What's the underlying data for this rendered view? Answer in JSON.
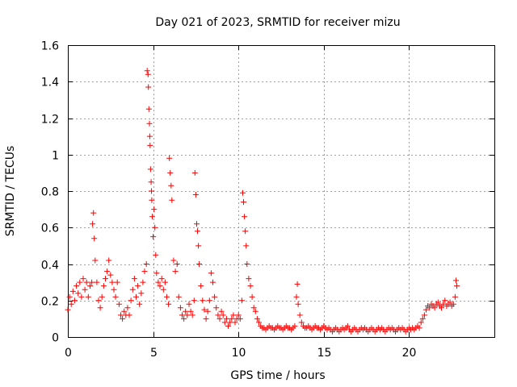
{
  "chart_data": {
    "type": "scatter",
    "title": "Day 021 of 2023, SRMTID for receiver mizu",
    "xlabel": "GPS time / hours",
    "ylabel": "SRMTID / TECUs",
    "xlim": [
      0,
      25
    ],
    "ylim": [
      0,
      1.6
    ],
    "xticks": [
      0,
      5,
      10,
      15,
      20
    ],
    "xtick_labels": [
      "0",
      "5",
      "10",
      "15",
      "20"
    ],
    "yticks": [
      0,
      0.2,
      0.4,
      0.6,
      0.8,
      1.0,
      1.2,
      1.4,
      1.6
    ],
    "ytick_labels": [
      "0",
      "0.2",
      "0.4",
      "0.6",
      "0.8",
      "1",
      "1.2",
      "1.4",
      "1.6"
    ],
    "grid": true,
    "marker": "+",
    "marker_color": "#ff0000",
    "series": [
      {
        "name": "SRMTID",
        "points": [
          [
            0.0,
            0.15
          ],
          [
            0.1,
            0.22
          ],
          [
            0.2,
            0.18
          ],
          [
            0.3,
            0.25
          ],
          [
            0.4,
            0.2
          ],
          [
            0.5,
            0.28
          ],
          [
            0.6,
            0.24
          ],
          [
            0.7,
            0.3
          ],
          [
            0.8,
            0.22
          ],
          [
            0.9,
            0.32
          ],
          [
            1.0,
            0.26
          ],
          [
            1.1,
            0.3
          ],
          [
            1.2,
            0.22
          ],
          [
            1.3,
            0.28
          ],
          [
            1.4,
            0.3
          ],
          [
            1.45,
            0.62
          ],
          [
            1.5,
            0.68
          ],
          [
            1.55,
            0.54
          ],
          [
            1.6,
            0.42
          ],
          [
            1.7,
            0.3
          ],
          [
            1.8,
            0.2
          ],
          [
            1.9,
            0.16
          ],
          [
            2.0,
            0.22
          ],
          [
            2.1,
            0.28
          ],
          [
            2.2,
            0.32
          ],
          [
            2.3,
            0.36
          ],
          [
            2.4,
            0.42
          ],
          [
            2.5,
            0.34
          ],
          [
            2.6,
            0.3
          ],
          [
            2.7,
            0.26
          ],
          [
            2.8,
            0.22
          ],
          [
            2.9,
            0.3
          ],
          [
            3.0,
            0.18
          ],
          [
            3.1,
            0.12
          ],
          [
            3.2,
            0.1
          ],
          [
            3.3,
            0.14
          ],
          [
            3.4,
            0.12
          ],
          [
            3.5,
            0.16
          ],
          [
            3.6,
            0.12
          ],
          [
            3.7,
            0.2
          ],
          [
            3.8,
            0.26
          ],
          [
            3.9,
            0.32
          ],
          [
            4.0,
            0.22
          ],
          [
            4.1,
            0.28
          ],
          [
            4.2,
            0.18
          ],
          [
            4.3,
            0.24
          ],
          [
            4.4,
            0.3
          ],
          [
            4.5,
            0.36
          ],
          [
            4.6,
            0.4
          ],
          [
            4.65,
            1.46
          ],
          [
            4.7,
            1.44
          ],
          [
            4.72,
            1.37
          ],
          [
            4.75,
            1.25
          ],
          [
            4.78,
            1.17
          ],
          [
            4.8,
            1.1
          ],
          [
            4.82,
            1.05
          ],
          [
            4.85,
            0.92
          ],
          [
            4.88,
            0.85
          ],
          [
            4.9,
            0.8
          ],
          [
            4.92,
            0.75
          ],
          [
            4.95,
            0.66
          ],
          [
            5.0,
            0.55
          ],
          [
            5.05,
            0.7
          ],
          [
            5.1,
            0.6
          ],
          [
            5.15,
            0.45
          ],
          [
            5.2,
            0.35
          ],
          [
            5.3,
            0.3
          ],
          [
            5.4,
            0.28
          ],
          [
            5.5,
            0.32
          ],
          [
            5.6,
            0.26
          ],
          [
            5.7,
            0.3
          ],
          [
            5.8,
            0.22
          ],
          [
            5.9,
            0.18
          ],
          [
            5.95,
            0.98
          ],
          [
            6.0,
            0.9
          ],
          [
            6.05,
            0.83
          ],
          [
            6.1,
            0.75
          ],
          [
            6.2,
            0.42
          ],
          [
            6.3,
            0.36
          ],
          [
            6.4,
            0.4
          ],
          [
            6.5,
            0.22
          ],
          [
            6.6,
            0.16
          ],
          [
            6.7,
            0.12
          ],
          [
            6.8,
            0.1
          ],
          [
            6.9,
            0.14
          ],
          [
            7.0,
            0.12
          ],
          [
            7.1,
            0.18
          ],
          [
            7.2,
            0.14
          ],
          [
            7.3,
            0.12
          ],
          [
            7.4,
            0.2
          ],
          [
            7.45,
            0.9
          ],
          [
            7.5,
            0.78
          ],
          [
            7.55,
            0.62
          ],
          [
            7.6,
            0.58
          ],
          [
            7.65,
            0.5
          ],
          [
            7.7,
            0.4
          ],
          [
            7.8,
            0.28
          ],
          [
            7.9,
            0.2
          ],
          [
            8.0,
            0.15
          ],
          [
            8.1,
            0.1
          ],
          [
            8.2,
            0.14
          ],
          [
            8.3,
            0.2
          ],
          [
            8.4,
            0.35
          ],
          [
            8.5,
            0.3
          ],
          [
            8.6,
            0.22
          ],
          [
            8.7,
            0.16
          ],
          [
            8.8,
            0.12
          ],
          [
            8.9,
            0.1
          ],
          [
            9.0,
            0.14
          ],
          [
            9.1,
            0.12
          ],
          [
            9.2,
            0.08
          ],
          [
            9.3,
            0.1
          ],
          [
            9.4,
            0.06
          ],
          [
            9.5,
            0.08
          ],
          [
            9.6,
            0.1
          ],
          [
            9.7,
            0.12
          ],
          [
            9.8,
            0.08
          ],
          [
            9.9,
            0.1
          ],
          [
            10.0,
            0.12
          ],
          [
            10.1,
            0.1
          ],
          [
            10.2,
            0.2
          ],
          [
            10.25,
            0.79
          ],
          [
            10.3,
            0.74
          ],
          [
            10.35,
            0.66
          ],
          [
            10.4,
            0.58
          ],
          [
            10.45,
            0.5
          ],
          [
            10.5,
            0.4
          ],
          [
            10.6,
            0.32
          ],
          [
            10.7,
            0.28
          ],
          [
            10.8,
            0.22
          ],
          [
            10.9,
            0.16
          ],
          [
            11.0,
            0.14
          ],
          [
            11.1,
            0.1
          ],
          [
            11.2,
            0.08
          ],
          [
            11.3,
            0.06
          ],
          [
            11.4,
            0.05
          ],
          [
            11.5,
            0.05
          ],
          [
            11.6,
            0.04
          ],
          [
            11.7,
            0.05
          ],
          [
            11.8,
            0.06
          ],
          [
            11.9,
            0.05
          ],
          [
            12.0,
            0.05
          ],
          [
            12.1,
            0.04
          ],
          [
            12.2,
            0.05
          ],
          [
            12.3,
            0.06
          ],
          [
            12.4,
            0.05
          ],
          [
            12.5,
            0.05
          ],
          [
            12.6,
            0.04
          ],
          [
            12.7,
            0.05
          ],
          [
            12.8,
            0.06
          ],
          [
            12.9,
            0.05
          ],
          [
            13.0,
            0.05
          ],
          [
            13.1,
            0.04
          ],
          [
            13.2,
            0.05
          ],
          [
            13.3,
            0.06
          ],
          [
            13.4,
            0.22
          ],
          [
            13.45,
            0.29
          ],
          [
            13.5,
            0.18
          ],
          [
            13.6,
            0.12
          ],
          [
            13.7,
            0.08
          ],
          [
            13.8,
            0.06
          ],
          [
            13.9,
            0.05
          ],
          [
            14.0,
            0.05
          ],
          [
            14.1,
            0.06
          ],
          [
            14.2,
            0.05
          ],
          [
            14.3,
            0.04
          ],
          [
            14.4,
            0.05
          ],
          [
            14.5,
            0.06
          ],
          [
            14.6,
            0.05
          ],
          [
            14.7,
            0.05
          ],
          [
            14.8,
            0.04
          ],
          [
            14.9,
            0.05
          ],
          [
            15.0,
            0.06
          ],
          [
            15.1,
            0.05
          ],
          [
            15.2,
            0.04
          ],
          [
            15.3,
            0.05
          ],
          [
            15.4,
            0.04
          ],
          [
            15.5,
            0.03
          ],
          [
            15.6,
            0.04
          ],
          [
            15.7,
            0.05
          ],
          [
            15.8,
            0.04
          ],
          [
            15.9,
            0.03
          ],
          [
            16.0,
            0.04
          ],
          [
            16.1,
            0.05
          ],
          [
            16.2,
            0.04
          ],
          [
            16.3,
            0.05
          ],
          [
            16.4,
            0.06
          ],
          [
            16.5,
            0.04
          ],
          [
            16.6,
            0.03
          ],
          [
            16.7,
            0.04
          ],
          [
            16.8,
            0.05
          ],
          [
            16.9,
            0.04
          ],
          [
            17.0,
            0.03
          ],
          [
            17.1,
            0.04
          ],
          [
            17.2,
            0.05
          ],
          [
            17.3,
            0.04
          ],
          [
            17.4,
            0.05
          ],
          [
            17.5,
            0.04
          ],
          [
            17.6,
            0.03
          ],
          [
            17.7,
            0.04
          ],
          [
            17.8,
            0.05
          ],
          [
            17.9,
            0.04
          ],
          [
            18.0,
            0.03
          ],
          [
            18.1,
            0.04
          ],
          [
            18.2,
            0.05
          ],
          [
            18.3,
            0.04
          ],
          [
            18.4,
            0.05
          ],
          [
            18.5,
            0.04
          ],
          [
            18.6,
            0.03
          ],
          [
            18.7,
            0.04
          ],
          [
            18.8,
            0.05
          ],
          [
            18.9,
            0.04
          ],
          [
            19.0,
            0.05
          ],
          [
            19.1,
            0.04
          ],
          [
            19.2,
            0.03
          ],
          [
            19.3,
            0.04
          ],
          [
            19.4,
            0.05
          ],
          [
            19.5,
            0.04
          ],
          [
            19.6,
            0.05
          ],
          [
            19.7,
            0.04
          ],
          [
            19.8,
            0.03
          ],
          [
            19.9,
            0.04
          ],
          [
            20.0,
            0.05
          ],
          [
            20.1,
            0.04
          ],
          [
            20.2,
            0.05
          ],
          [
            20.3,
            0.04
          ],
          [
            20.4,
            0.05
          ],
          [
            20.5,
            0.06
          ],
          [
            20.6,
            0.05
          ],
          [
            20.7,
            0.08
          ],
          [
            20.8,
            0.1
          ],
          [
            20.9,
            0.12
          ],
          [
            21.0,
            0.15
          ],
          [
            21.1,
            0.17
          ],
          [
            21.2,
            0.16
          ],
          [
            21.3,
            0.18
          ],
          [
            21.4,
            0.17
          ],
          [
            21.5,
            0.16
          ],
          [
            21.6,
            0.18
          ],
          [
            21.7,
            0.19
          ],
          [
            21.8,
            0.17
          ],
          [
            21.9,
            0.16
          ],
          [
            22.0,
            0.18
          ],
          [
            22.1,
            0.2
          ],
          [
            22.2,
            0.17
          ],
          [
            22.3,
            0.18
          ],
          [
            22.4,
            0.19
          ],
          [
            22.5,
            0.17
          ],
          [
            22.6,
            0.18
          ],
          [
            22.7,
            0.22
          ],
          [
            22.75,
            0.31
          ],
          [
            22.8,
            0.28
          ]
        ]
      }
    ]
  }
}
